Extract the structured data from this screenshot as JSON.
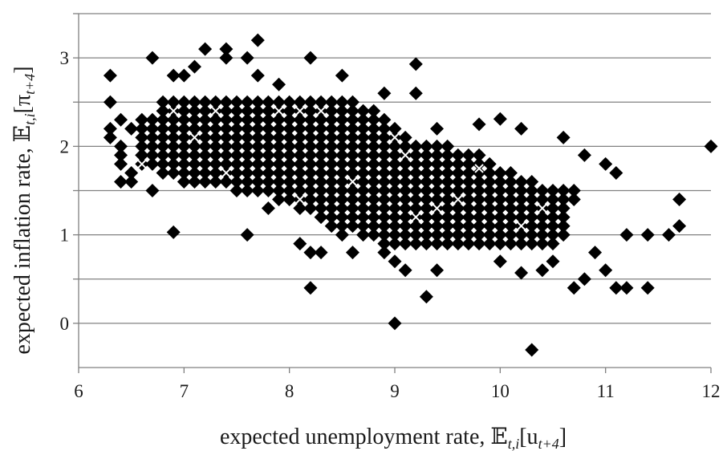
{
  "chart_data": {
    "type": "scatter",
    "title": "",
    "xlabel": "expected unemployment rate, E_{t,i}[u_{t+4}]",
    "ylabel": "expected inflation rate, E_{t,i}[π_{t+4}]",
    "xlim": [
      6,
      12
    ],
    "ylim": [
      -0.5,
      3.5
    ],
    "x_ticks": [
      "6",
      "7",
      "8",
      "9",
      "10",
      "11",
      "12"
    ],
    "y_ticks": [
      "0",
      "1",
      "2",
      "3"
    ],
    "grid": "horizontal",
    "legend": "none",
    "colors": {
      "marker": "#000000",
      "highlight": "#ffffff",
      "grid": "#808080"
    },
    "series": [
      {
        "marker": "diamond",
        "points": [
          [
            6.3,
            2.8
          ],
          [
            6.3,
            2.5
          ],
          [
            6.3,
            2.2
          ],
          [
            6.3,
            2.1
          ],
          [
            6.4,
            2.3
          ],
          [
            6.4,
            2.0
          ],
          [
            6.4,
            1.9
          ],
          [
            6.4,
            1.8
          ],
          [
            6.4,
            1.6
          ],
          [
            6.5,
            2.2
          ],
          [
            6.5,
            1.7
          ],
          [
            6.5,
            1.6
          ],
          [
            6.6,
            2.3
          ],
          [
            6.6,
            1.9
          ],
          [
            6.6,
            1.8
          ],
          [
            6.7,
            3.0
          ],
          [
            6.7,
            1.5
          ],
          [
            6.9,
            1.03
          ],
          [
            6.9,
            2.8
          ],
          [
            7.0,
            2.8
          ],
          [
            7.1,
            2.9
          ],
          [
            7.2,
            3.1
          ],
          [
            7.4,
            3.1
          ],
          [
            7.4,
            3.0
          ],
          [
            7.6,
            3.0
          ],
          [
            7.7,
            3.2
          ],
          [
            7.7,
            2.8
          ],
          [
            7.6,
            1.0
          ],
          [
            7.8,
            1.3
          ],
          [
            7.9,
            2.7
          ],
          [
            8.2,
            3.0
          ],
          [
            8.1,
            0.9
          ],
          [
            8.2,
            0.8
          ],
          [
            8.2,
            0.4
          ],
          [
            8.3,
            0.8
          ],
          [
            8.5,
            1.0
          ],
          [
            8.5,
            2.8
          ],
          [
            8.6,
            0.8
          ],
          [
            8.9,
            2.6
          ],
          [
            8.9,
            0.8
          ],
          [
            9.0,
            0.0
          ],
          [
            9.0,
            0.7
          ],
          [
            9.1,
            0.6
          ],
          [
            9.2,
            2.93
          ],
          [
            9.2,
            2.6
          ],
          [
            9.3,
            0.3
          ],
          [
            9.4,
            0.6
          ],
          [
            9.4,
            2.2
          ],
          [
            9.6,
            1.0
          ],
          [
            9.8,
            2.25
          ],
          [
            10.0,
            2.31
          ],
          [
            10.0,
            0.7
          ],
          [
            10.2,
            2.2
          ],
          [
            10.2,
            0.57
          ],
          [
            10.3,
            -0.3
          ],
          [
            10.4,
            0.6
          ],
          [
            10.5,
            0.7
          ],
          [
            10.6,
            2.1
          ],
          [
            10.7,
            0.4
          ],
          [
            10.8,
            1.9
          ],
          [
            10.8,
            0.5
          ],
          [
            10.9,
            0.8
          ],
          [
            11.0,
            1.8
          ],
          [
            11.0,
            0.6
          ],
          [
            11.1,
            0.4
          ],
          [
            11.1,
            1.7
          ],
          [
            11.2,
            0.4
          ],
          [
            11.2,
            1.0
          ],
          [
            11.4,
            1.0
          ],
          [
            11.4,
            0.4
          ],
          [
            11.6,
            1.0
          ],
          [
            11.7,
            1.4
          ],
          [
            11.7,
            1.1
          ],
          [
            12.0,
            2.0
          ]
        ]
      },
      {
        "marker": "x",
        "points": [
          [
            6.9,
            2.4
          ],
          [
            7.1,
            2.1
          ],
          [
            7.3,
            2.4
          ],
          [
            7.4,
            1.7
          ],
          [
            8.1,
            2.4
          ],
          [
            8.3,
            2.4
          ],
          [
            7.9,
            2.4
          ],
          [
            8.1,
            1.4
          ],
          [
            9.0,
            2.1
          ],
          [
            9.1,
            1.9
          ],
          [
            9.2,
            1.2
          ],
          [
            9.4,
            1.3
          ],
          [
            9.6,
            1.4
          ],
          [
            9.8,
            1.75
          ],
          [
            10.2,
            1.1
          ],
          [
            10.4,
            1.3
          ],
          [
            8.6,
            1.6
          ],
          [
            6.6,
            1.8
          ]
        ]
      }
    ],
    "dense_region": {
      "x_step": 0.1,
      "y_step": 0.1,
      "rows": [
        {
          "y": 2.5,
          "x_from": 6.8,
          "x_to": 8.6
        },
        {
          "y": 2.4,
          "x_from": 6.8,
          "x_to": 8.8
        },
        {
          "y": 2.3,
          "x_from": 6.7,
          "x_to": 8.9
        },
        {
          "y": 2.2,
          "x_from": 6.6,
          "x_to": 9.0
        },
        {
          "y": 2.1,
          "x_from": 6.6,
          "x_to": 9.1
        },
        {
          "y": 2.0,
          "x_from": 6.6,
          "x_to": 9.5
        },
        {
          "y": 1.9,
          "x_from": 6.6,
          "x_to": 9.8
        },
        {
          "y": 1.8,
          "x_from": 6.7,
          "x_to": 9.9
        },
        {
          "y": 1.7,
          "x_from": 6.8,
          "x_to": 10.1
        },
        {
          "y": 1.6,
          "x_from": 7.0,
          "x_to": 10.3
        },
        {
          "y": 1.5,
          "x_from": 7.5,
          "x_to": 10.7
        },
        {
          "y": 1.4,
          "x_from": 7.9,
          "x_to": 10.7
        },
        {
          "y": 1.3,
          "x_from": 8.1,
          "x_to": 10.6
        },
        {
          "y": 1.2,
          "x_from": 8.3,
          "x_to": 10.6
        },
        {
          "y": 1.1,
          "x_from": 8.4,
          "x_to": 10.6
        },
        {
          "y": 1.0,
          "x_from": 8.7,
          "x_to": 10.6
        },
        {
          "y": 0.9,
          "x_from": 8.9,
          "x_to": 10.5
        }
      ]
    }
  }
}
